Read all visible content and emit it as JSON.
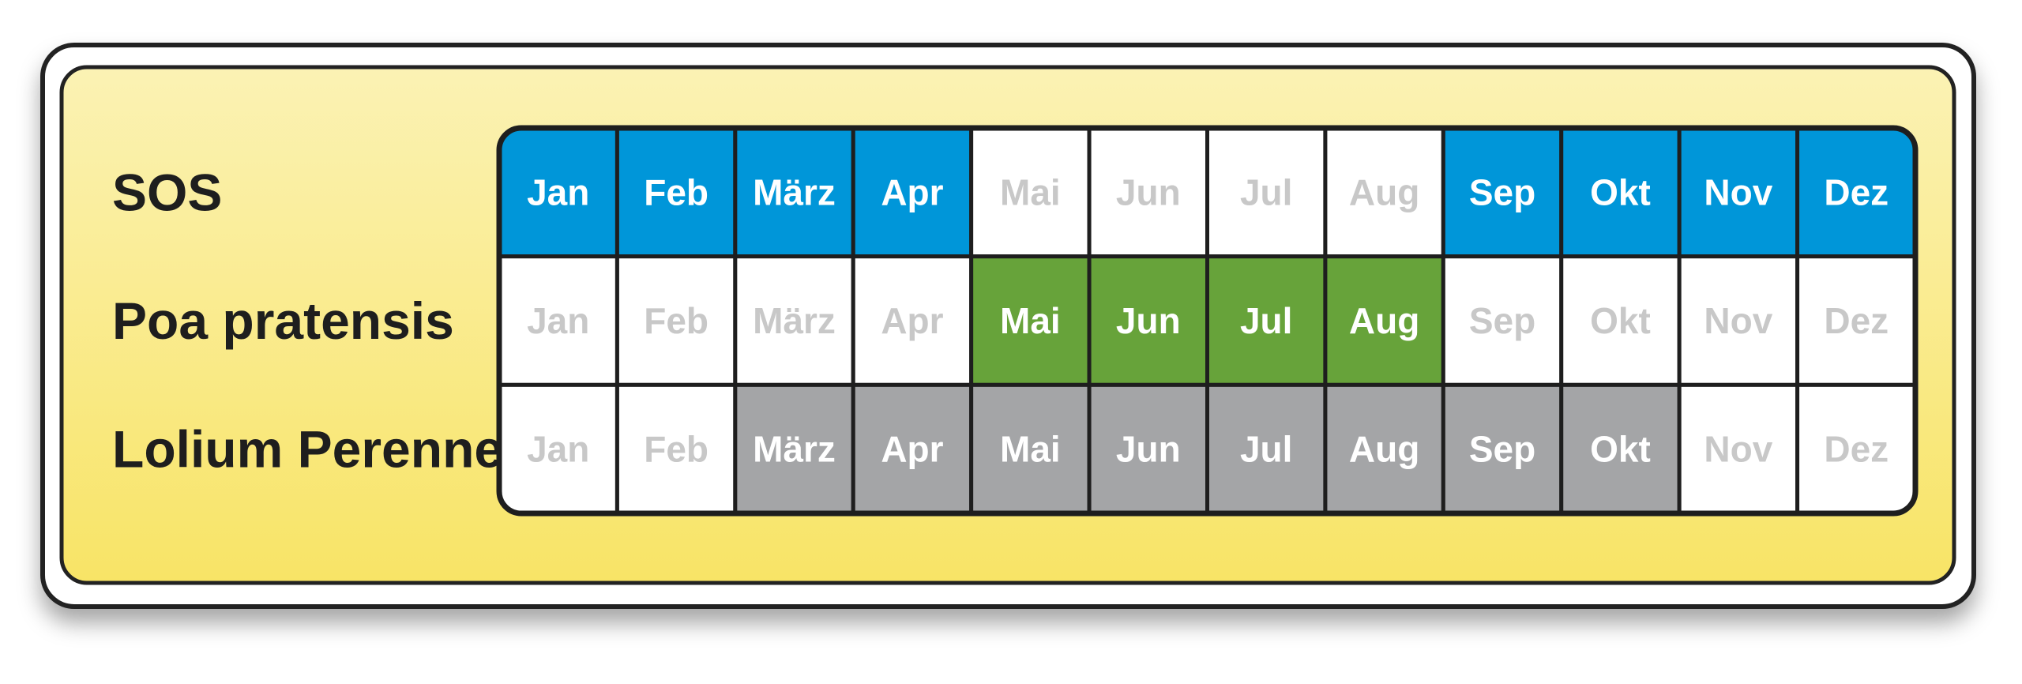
{
  "months": [
    "Jan",
    "Feb",
    "März",
    "Apr",
    "Mai",
    "Jun",
    "Jul",
    "Aug",
    "Sep",
    "Okt",
    "Nov",
    "Dez"
  ],
  "rows": [
    {
      "label": "SOS",
      "color": "#0096d9",
      "active": [
        true,
        true,
        true,
        true,
        false,
        false,
        false,
        false,
        true,
        true,
        true,
        true
      ]
    },
    {
      "label": "Poa pratensis",
      "color": "#67a33a",
      "active": [
        false,
        false,
        false,
        false,
        true,
        true,
        true,
        true,
        false,
        false,
        false,
        false
      ]
    },
    {
      "label": "Lolium Perenne",
      "color": "#a4a5a7",
      "active": [
        false,
        false,
        true,
        true,
        true,
        true,
        true,
        true,
        true,
        true,
        false,
        false
      ]
    }
  ]
}
